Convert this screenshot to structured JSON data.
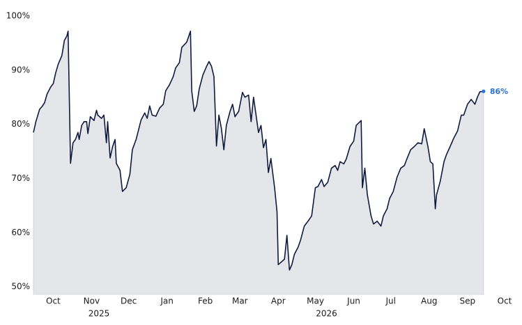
{
  "chart_data": {
    "type": "area",
    "x": [
      0,
      2,
      5,
      7,
      9,
      11,
      14,
      16,
      18,
      20,
      23,
      25,
      27,
      28,
      30,
      32,
      34,
      36,
      37,
      39,
      41,
      43,
      44,
      46,
      49,
      51,
      52,
      55,
      57,
      59,
      60,
      62,
      64,
      66,
      67,
      70,
      72,
      75,
      78,
      80,
      83,
      87,
      90,
      92,
      94,
      96,
      99,
      102,
      105,
      107,
      110,
      113,
      115,
      118,
      120,
      124,
      127,
      128,
      130,
      132,
      134,
      137,
      140,
      142,
      144,
      146,
      148,
      150,
      152,
      154,
      156,
      159,
      161,
      163,
      166,
      169,
      171,
      174,
      176,
      178,
      180,
      182,
      184,
      186,
      188,
      190,
      192,
      195,
      197,
      198,
      200,
      203,
      205,
      207,
      209,
      211,
      214,
      216,
      219,
      222,
      225,
      228,
      230,
      233,
      235,
      238,
      241,
      244,
      246,
      248,
      251,
      253,
      256,
      259,
      261,
      265,
      266,
      268,
      270,
      273,
      275,
      278,
      281,
      283,
      286,
      288,
      291,
      294,
      297,
      300,
      302,
      305,
      308,
      311,
      314,
      316,
      319,
      321,
      323,
      325,
      326,
      329,
      332,
      334,
      337,
      340,
      343,
      346,
      348,
      351,
      354,
      357,
      359,
      361,
      364
    ],
    "values": [
      78.5,
      80.5,
      82.8,
      83.3,
      84,
      85.6,
      86.9,
      87.5,
      89.5,
      91.1,
      92.7,
      95.5,
      96.3,
      97.2,
      72.8,
      76.6,
      77.2,
      78.5,
      77.2,
      79.8,
      80.5,
      80.5,
      78.3,
      81.4,
      80.7,
      82.6,
      81.7,
      81.1,
      81.7,
      76.6,
      80.5,
      73.8,
      75.9,
      77.2,
      72.8,
      71.5,
      67.6,
      68.3,
      70.8,
      75.3,
      77.2,
      80.8,
      82.1,
      81.1,
      83.4,
      81.7,
      81.5,
      83,
      83.7,
      86.2,
      87.3,
      88.8,
      90.4,
      91.4,
      94.2,
      95.2,
      97.2,
      86.2,
      82.4,
      83.4,
      86.5,
      89.1,
      90.7,
      91.6,
      90.7,
      88.8,
      76,
      81.7,
      79.2,
      75.3,
      79.8,
      82.4,
      83.7,
      81.4,
      82.4,
      85.9,
      85,
      85.4,
      80.5,
      85,
      81.7,
      78.5,
      79.8,
      75.7,
      77.2,
      71.1,
      73.7,
      68.3,
      63.8,
      54.1,
      54.5,
      55.1,
      59.5,
      53.1,
      54.1,
      56,
      57.3,
      58.6,
      61.2,
      62.1,
      63.1,
      68.3,
      68.5,
      69.8,
      68.5,
      69.3,
      71.9,
      72.4,
      71.5,
      73.1,
      72.7,
      73.6,
      75.9,
      76.9,
      79.8,
      80.7,
      68.3,
      71.9,
      67,
      63.1,
      61.6,
      62.1,
      61.2,
      63.1,
      64.4,
      66.3,
      67.6,
      70.2,
      71.9,
      72.4,
      73.6,
      75.3,
      75.9,
      76.6,
      76.4,
      79.2,
      75.9,
      73.1,
      72.7,
      64.4,
      67,
      69.5,
      73.1,
      74.4,
      75.9,
      77.5,
      78.8,
      81.7,
      81.7,
      83.7,
      84.6,
      83.7,
      85,
      86,
      86.1
    ],
    "color": "#101a3e",
    "fill_color": "#e5e6ea",
    "end_label": "86%",
    "end_label_color": "#2b6fdc",
    "xlim": [
      0,
      381
    ],
    "xticks": [
      {
        "value": 16,
        "label": "Oct"
      },
      {
        "value": 47,
        "label": "Nov"
      },
      {
        "value": 77,
        "label": "Dec"
      },
      {
        "value": 108,
        "label": "Jan"
      },
      {
        "value": 139,
        "label": "Feb"
      },
      {
        "value": 167,
        "label": "Mar"
      },
      {
        "value": 198,
        "label": "Apr"
      },
      {
        "value": 228,
        "label": "May"
      },
      {
        "value": 259,
        "label": "Jun"
      },
      {
        "value": 289,
        "label": "Jul"
      },
      {
        "value": 320,
        "label": "Aug"
      },
      {
        "value": 351,
        "label": "Sep"
      },
      {
        "value": 381,
        "label": "Oct"
      }
    ],
    "year_ticks": [
      {
        "value": 53,
        "label": "2025"
      },
      {
        "value": 237,
        "label": "2026"
      }
    ],
    "ylim": [
      48.6,
      100
    ],
    "yticks": [
      {
        "value": 50,
        "label": "50%"
      },
      {
        "value": 60,
        "label": "60%"
      },
      {
        "value": 70,
        "label": "70%"
      },
      {
        "value": 80,
        "label": "80%"
      },
      {
        "value": 90,
        "label": "90%"
      },
      {
        "value": 100,
        "label": "100%"
      }
    ],
    "grid": false
  }
}
